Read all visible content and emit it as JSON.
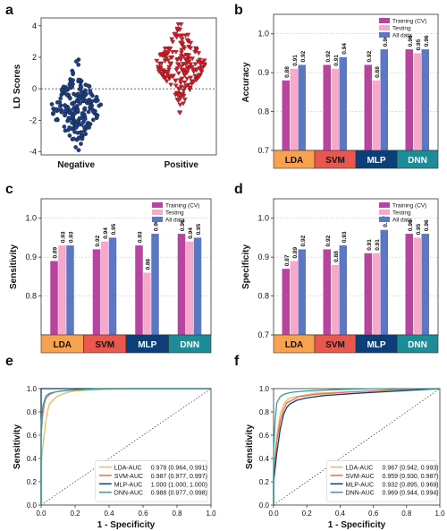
{
  "colors": {
    "negative": "#1f3e7a",
    "positive": "#cc1f2a",
    "training": "#b8449f",
    "testing": "#f6a9cb",
    "alldata": "#5b78c4",
    "model_fill": {
      "LDA": "#f7a24e",
      "SVM": "#e8584f",
      "MLP": "#0c3f7a",
      "DNN": "#1c8d96"
    },
    "roc": {
      "LDA": "#f0b85a",
      "SVM": "#ef6a54",
      "MLP": "#0f3c73",
      "DNN": "#27a3a5"
    }
  },
  "chart_data": [
    {
      "panel": "a",
      "type": "scatter",
      "ylabel": "LD Scores",
      "categories": [
        "Negative",
        "Positive"
      ],
      "ylim": [
        -4.2,
        4.5
      ],
      "yticks": [
        -4,
        -2,
        0,
        2,
        4
      ],
      "reference_line_y": 0,
      "groups": [
        {
          "name": "Negative",
          "center": -1.2,
          "min": -3.9,
          "max": 2.1,
          "count": 220,
          "marker": "circle"
        },
        {
          "name": "Positive",
          "center": 1.6,
          "min": -1.5,
          "max": 4.1,
          "count": 200,
          "marker": "triangle-down"
        }
      ]
    },
    {
      "panel": "b",
      "type": "bar",
      "ylabel": "Accuracy",
      "ylim": [
        0.7,
        1.05
      ],
      "yticks": [
        0.7,
        0.8,
        0.9,
        1.0
      ],
      "categories": [
        "LDA",
        "SVM",
        "MLP",
        "DNN"
      ],
      "series": [
        {
          "name": "Training (CV)",
          "values": [
            0.88,
            0.92,
            0.92,
            0.96
          ]
        },
        {
          "name": "Testing",
          "values": [
            0.91,
            0.91,
            0.88,
            0.95
          ]
        },
        {
          "name": "All data",
          "values": [
            0.92,
            0.94,
            0.96,
            0.96
          ]
        }
      ]
    },
    {
      "panel": "c",
      "type": "bar",
      "ylabel": "Sensitivity",
      "ylim": [
        0.7,
        1.05
      ],
      "yticks": [
        0.8,
        0.9,
        1.0
      ],
      "categories": [
        "LDA",
        "SVM",
        "MLP",
        "DNN"
      ],
      "series": [
        {
          "name": "Training (CV)",
          "values": [
            0.89,
            0.92,
            0.93,
            0.96
          ]
        },
        {
          "name": "Testing",
          "values": [
            0.93,
            0.94,
            0.86,
            0.94
          ]
        },
        {
          "name": "All data",
          "values": [
            0.93,
            0.95,
            0.96,
            0.95
          ]
        }
      ]
    },
    {
      "panel": "d",
      "type": "bar",
      "ylabel": "Specificity",
      "ylim": [
        0.7,
        1.05
      ],
      "yticks": [
        0.7,
        0.8,
        0.9,
        1.0
      ],
      "categories": [
        "LDA",
        "SVM",
        "MLP",
        "DNN"
      ],
      "series": [
        {
          "name": "Training (CV)",
          "values": [
            0.87,
            0.92,
            0.91,
            0.96
          ]
        },
        {
          "name": "Testing",
          "values": [
            0.89,
            0.88,
            0.91,
            0.95
          ]
        },
        {
          "name": "All data",
          "values": [
            0.92,
            0.93,
            0.97,
            0.96
          ]
        }
      ]
    },
    {
      "panel": "e",
      "type": "line",
      "xlabel": "1 - Specificity",
      "ylabel": "Sensitivity",
      "xlim": [
        0,
        1
      ],
      "ylim": [
        0,
        1
      ],
      "xticks": [
        0.0,
        0.2,
        0.4,
        0.6,
        0.8,
        1.0
      ],
      "yticks": [
        0.0,
        0.2,
        0.4,
        0.6,
        0.8,
        1.0
      ],
      "diagonal": true,
      "series": [
        {
          "name": "LDA-AUC",
          "label": "0.978 (0.964, 0.991)",
          "x": [
            0,
            0.0,
            0.01,
            0.02,
            0.03,
            0.04,
            0.05,
            0.07,
            0.09,
            0.12,
            0.16,
            0.2,
            0.3,
            0.5,
            1.0
          ],
          "y": [
            0,
            0.35,
            0.5,
            0.62,
            0.74,
            0.82,
            0.87,
            0.9,
            0.93,
            0.95,
            0.97,
            0.98,
            0.99,
            1.0,
            1.0
          ]
        },
        {
          "name": "SVM-AUC",
          "label": "0.987 (0.977, 0.997)",
          "x": [
            0,
            0.0,
            0.01,
            0.02,
            0.03,
            0.05,
            0.08,
            0.12,
            0.2,
            0.4,
            1.0
          ],
          "y": [
            0,
            0.6,
            0.78,
            0.88,
            0.92,
            0.95,
            0.97,
            0.98,
            0.99,
            1.0,
            1.0
          ]
        },
        {
          "name": "MLP-AUC",
          "label": "1.000 (1.000, 1.000)",
          "x": [
            0,
            0.0,
            1.0
          ],
          "y": [
            0,
            1.0,
            1.0
          ]
        },
        {
          "name": "DNN-AUC",
          "label": "0.988 (0.977, 0.998)",
          "x": [
            0,
            0.0,
            0.01,
            0.02,
            0.03,
            0.05,
            0.08,
            0.12,
            0.2,
            0.35,
            1.0
          ],
          "y": [
            0,
            0.7,
            0.85,
            0.9,
            0.94,
            0.96,
            0.97,
            0.98,
            0.99,
            1.0,
            1.0
          ]
        }
      ]
    },
    {
      "panel": "f",
      "type": "line",
      "xlabel": "1 - Specificity",
      "ylabel": "Sensitivity",
      "xlim": [
        0,
        1
      ],
      "ylim": [
        0,
        1
      ],
      "xticks": [
        0.0,
        0.2,
        0.4,
        0.6,
        0.8,
        1.0
      ],
      "yticks": [
        0.0,
        0.2,
        0.4,
        0.6,
        0.8,
        1.0
      ],
      "diagonal": true,
      "series": [
        {
          "name": "LDA-AUC",
          "label": "0.967 (0.942, 0.993)",
          "x": [
            0,
            0.0,
            0.02,
            0.04,
            0.06,
            0.08,
            0.1,
            0.13,
            0.17,
            0.25,
            0.4,
            0.6,
            0.8,
            1.0
          ],
          "y": [
            0,
            0.3,
            0.6,
            0.78,
            0.86,
            0.9,
            0.92,
            0.93,
            0.94,
            0.96,
            0.97,
            0.98,
            0.99,
            1.0
          ]
        },
        {
          "name": "SVM-AUC",
          "label": "0.959 (0.930, 0.987)",
          "x": [
            0,
            0.0,
            0.02,
            0.04,
            0.06,
            0.08,
            0.11,
            0.15,
            0.25,
            0.45,
            0.7,
            1.0
          ],
          "y": [
            0,
            0.25,
            0.55,
            0.72,
            0.82,
            0.88,
            0.9,
            0.93,
            0.95,
            0.97,
            0.99,
            1.0
          ]
        },
        {
          "name": "MLP-AUC",
          "label": "0.932 (0.895, 0.969)",
          "x": [
            0,
            0.0,
            0.02,
            0.04,
            0.06,
            0.08,
            0.1,
            0.14,
            0.2,
            0.3,
            0.5,
            0.75,
            1.0
          ],
          "y": [
            0,
            0.2,
            0.45,
            0.65,
            0.78,
            0.84,
            0.87,
            0.9,
            0.92,
            0.94,
            0.96,
            0.98,
            1.0
          ]
        },
        {
          "name": "DNN-AUC",
          "label": "0.969 (0.944, 0.994)",
          "x": [
            0,
            0.0,
            0.01,
            0.02,
            0.04,
            0.06,
            0.08,
            0.12,
            0.2,
            0.35,
            0.6,
            1.0
          ],
          "y": [
            0,
            0.45,
            0.75,
            0.88,
            0.93,
            0.95,
            0.96,
            0.97,
            0.98,
            0.99,
            1.0,
            1.0
          ]
        }
      ]
    }
  ]
}
